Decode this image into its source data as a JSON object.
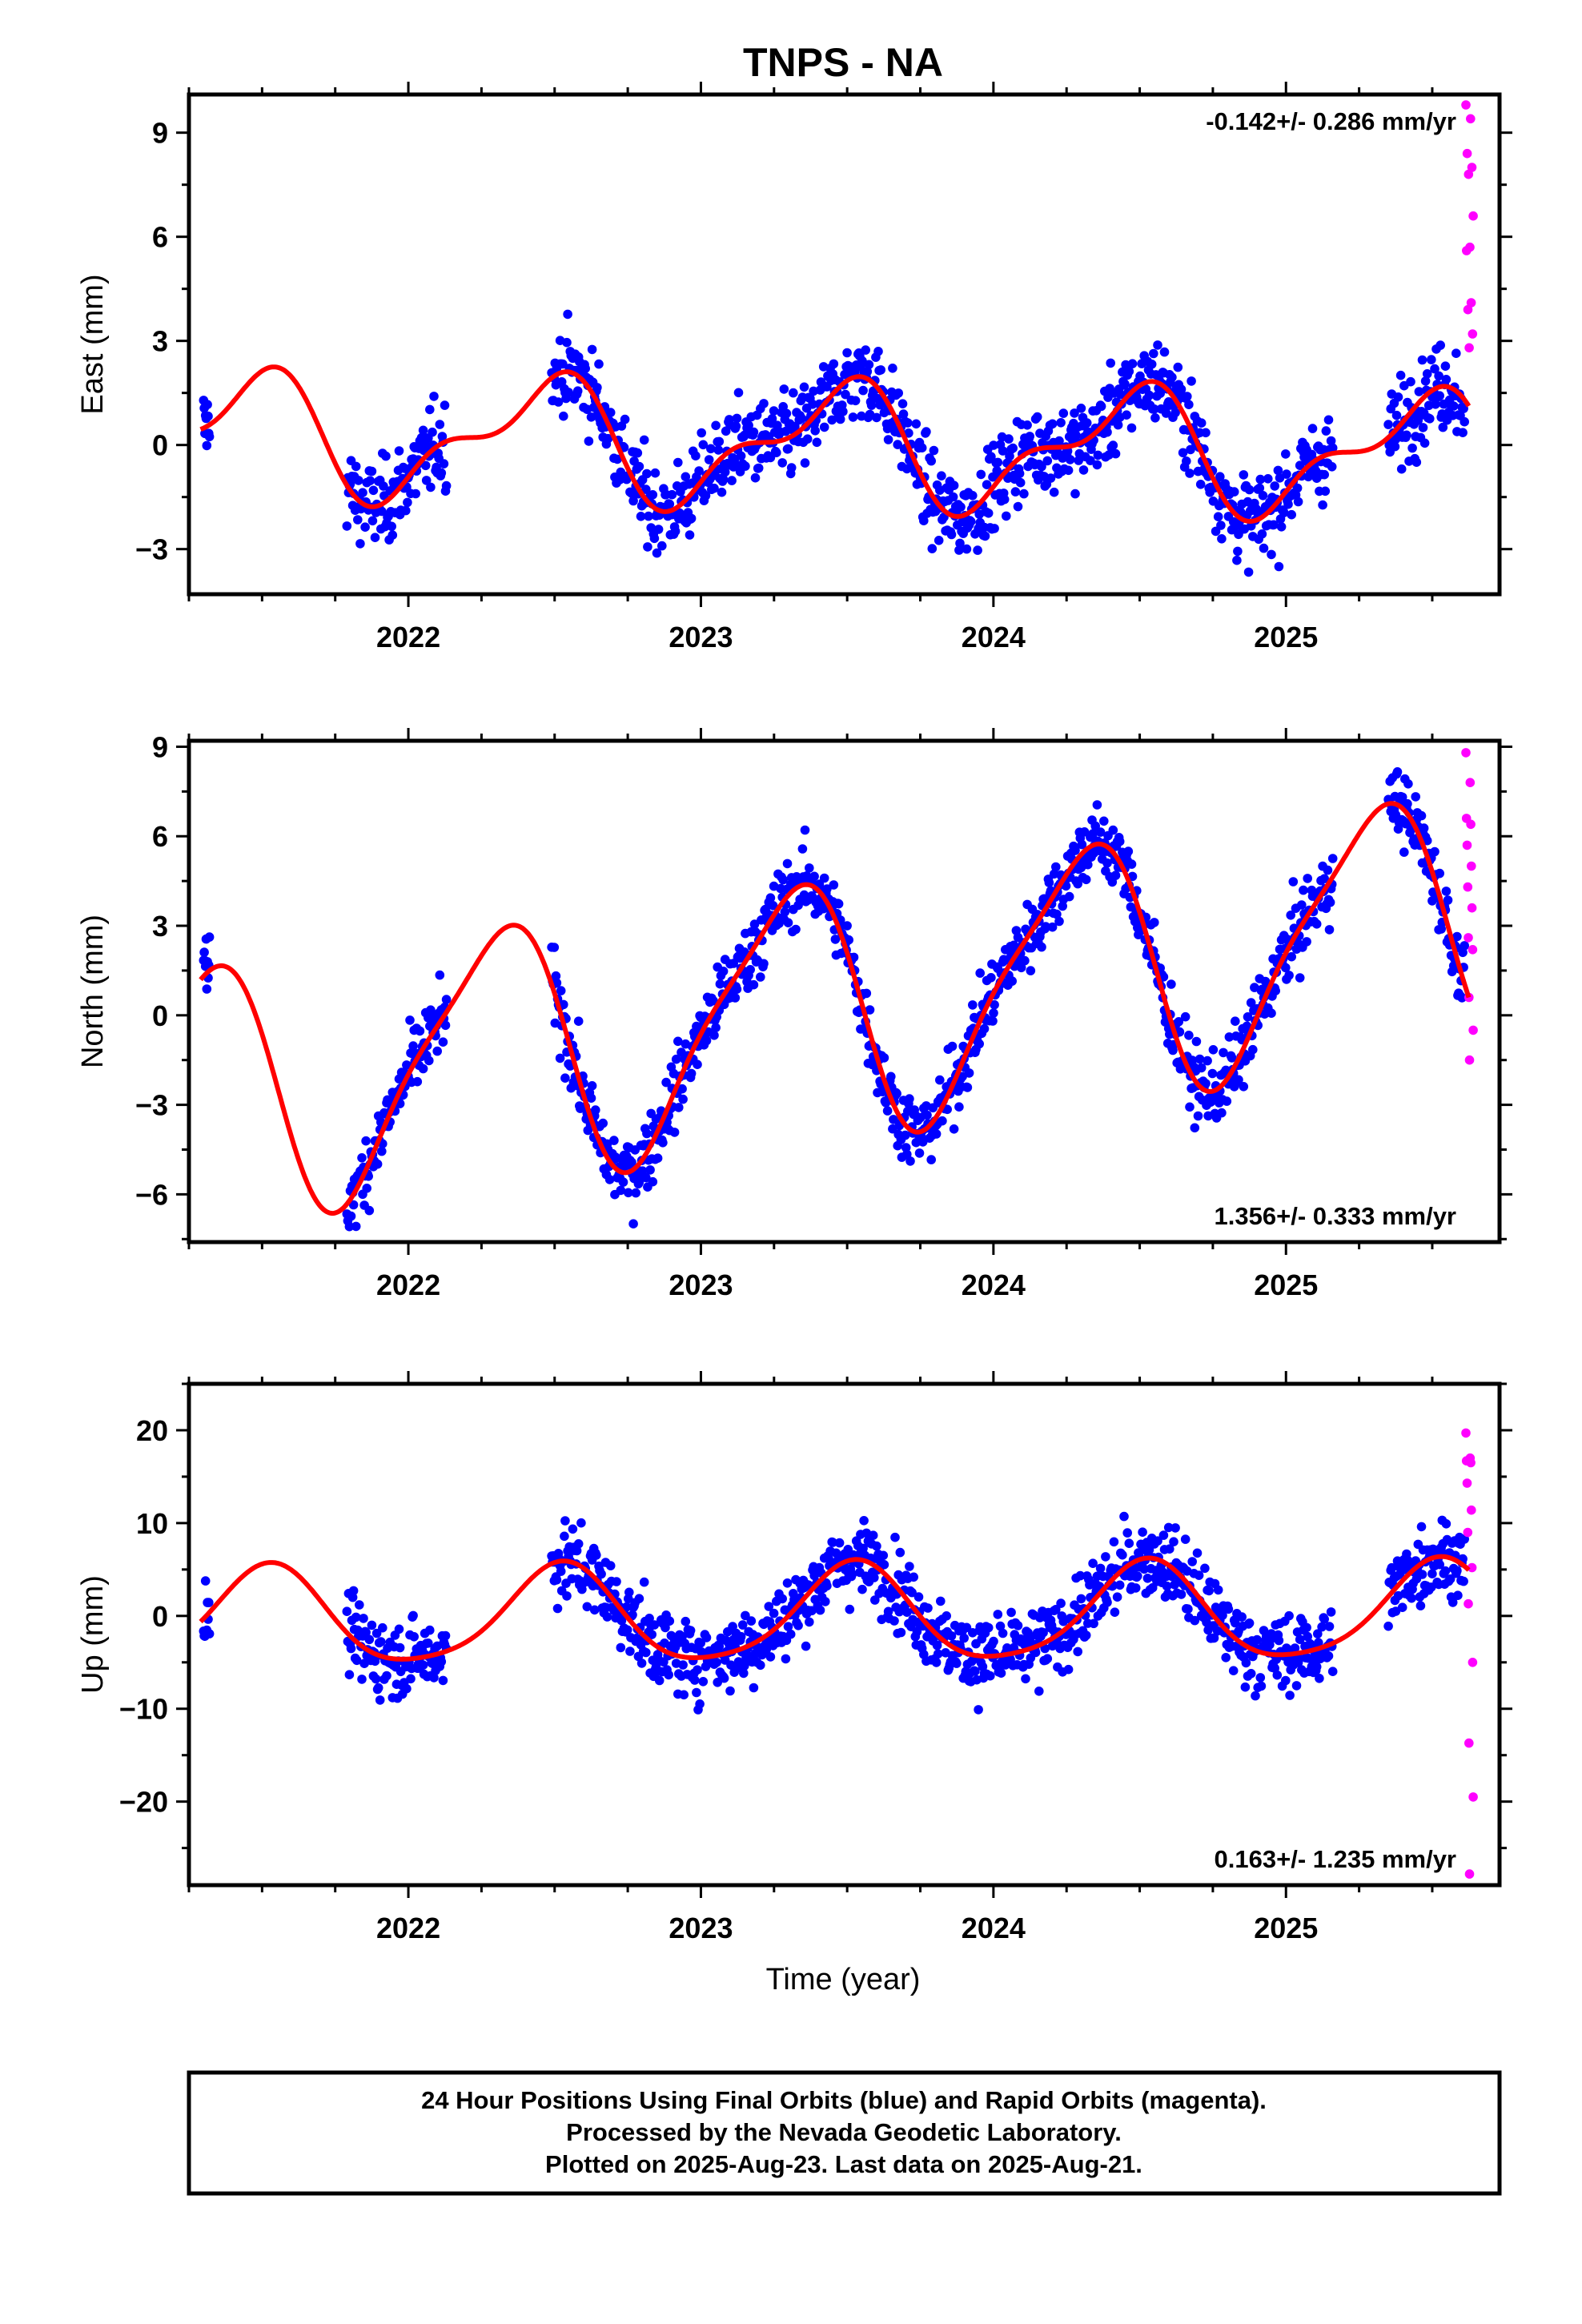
{
  "chart_data": {
    "type": "scatter",
    "title": "TNPS - NA",
    "xlabel": "Time (year)",
    "xlim": [
      2021.25,
      2025.73
    ],
    "x_ticks": [
      "2022",
      "2023",
      "2024",
      "2025"
    ],
    "series_styles": {
      "final_orbits_color": "#0000ff",
      "rapid_orbits_color": "#ff00ff",
      "model_color": "#ff0000"
    },
    "panels": [
      {
        "key": "east",
        "ylabel": "East (mm)",
        "ylim": [
          -4.3,
          10.1
        ],
        "yticks": [
          -3,
          0,
          3,
          6,
          9
        ],
        "ytick_labels": [
          "−3",
          "0",
          "3",
          "6",
          "9"
        ],
        "rate_text": "-0.142+/- 0.286 mm/yr",
        "rate_position": "top-right",
        "model": {
          "mean": 0.0,
          "trend": -0.14,
          "a1": 1.55,
          "phi1": -1.3,
          "a2": 0.75,
          "phi2": 0.5,
          "ref": 2023.5
        },
        "noise": 1.0,
        "rapid_values": [
          9.8,
          9.4,
          8.4,
          8.0,
          7.8,
          6.6,
          5.7,
          5.6,
          4.1,
          3.9,
          3.2,
          2.8
        ]
      },
      {
        "key": "north",
        "ylabel": "North (mm)",
        "ylim": [
          -7.6,
          9.2
        ],
        "yticks": [
          -6,
          -3,
          0,
          3,
          6,
          9
        ],
        "ytick_labels": [
          "−6",
          "−3",
          "0",
          "3",
          "6",
          "9"
        ],
        "rate_text": "1.356+/- 0.333 mm/yr",
        "rate_position": "bottom-right",
        "model": {
          "mean": 0.4,
          "trend": 1.36,
          "a1": 4.1,
          "phi1": -0.25,
          "a2": 0.9,
          "phi2": 2.3,
          "ref": 2023.5
        },
        "noise": 1.0,
        "rapid_values": [
          8.8,
          7.8,
          6.6,
          6.4,
          5.7,
          5.0,
          4.3,
          3.6,
          2.6,
          2.2,
          0.6,
          -0.5,
          -1.5
        ]
      },
      {
        "key": "up",
        "ylabel": "Up (mm)",
        "ylim": [
          -29,
          25
        ],
        "yticks": [
          -20,
          -10,
          0,
          10,
          20
        ],
        "ytick_labels": [
          "−20",
          "−10",
          "0",
          "10",
          "20"
        ],
        "rate_text": "0.163+/- 1.235 mm/yr",
        "rate_position": "bottom-right",
        "model": {
          "mean": 0.0,
          "trend": 0.16,
          "a1": 5.2,
          "phi1": -1.7,
          "a2": 0.9,
          "phi2": 1.0,
          "ref": 2023.5
        },
        "noise": 3.4,
        "rapid_values": [
          19.7,
          17.0,
          16.7,
          16.5,
          14.3,
          11.4,
          9.0,
          5.2,
          1.3,
          -5.0,
          -13.7,
          -19.5,
          -27.8
        ]
      }
    ],
    "data_segments": [
      [
        2021.3,
        2021.32
      ],
      [
        2021.79,
        2022.13
      ],
      [
        2022.49,
        2025.16
      ],
      [
        2025.35,
        2025.61
      ]
    ],
    "rapid_x_range": [
      2025.615,
      2025.64
    ],
    "footer_lines": [
      "24 Hour Positions Using Final Orbits (blue) and Rapid Orbits (magenta).",
      "Processed by the Nevada Geodetic Laboratory.",
      "Plotted on 2025-Aug-23. Last data on 2025-Aug-21."
    ]
  }
}
